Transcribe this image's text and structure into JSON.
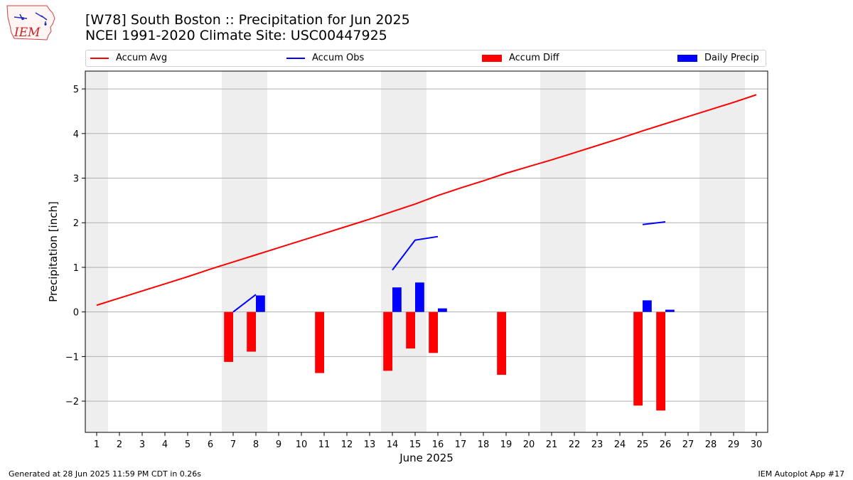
{
  "logo": {
    "text": "IEM"
  },
  "title": {
    "line1": "[W78] South Boston :: Precipitation for Jun 2025",
    "line2": "NCEI 1991-2020 Climate Site: USC00447925"
  },
  "legend": [
    {
      "label": "Accum Avg",
      "kind": "line",
      "color": "#ff0000"
    },
    {
      "label": "Accum Obs",
      "kind": "line",
      "color": "#0000ff"
    },
    {
      "label": "Accum Diff",
      "kind": "bar",
      "color": "#ff0000"
    },
    {
      "label": "Daily Precip",
      "kind": "bar",
      "color": "#0000ff"
    }
  ],
  "footer": {
    "left": "Generated at 28 Jun 2025 11:59 PM CDT in 0.26s",
    "right": "IEM Autoplot App #17"
  },
  "chart_data": {
    "type": "bar",
    "xlabel": "June 2025",
    "ylabel": "Precipitation [inch]",
    "xlim": [
      0.5,
      30.5
    ],
    "ylim": [
      -2.7,
      5.4
    ],
    "yticks": [
      -2,
      -1,
      0,
      1,
      2,
      3,
      4,
      5
    ],
    "ytick_labels": [
      "−2",
      "−1",
      "0",
      "1",
      "2",
      "3",
      "4",
      "5"
    ],
    "days": [
      1,
      2,
      3,
      4,
      5,
      6,
      7,
      8,
      9,
      10,
      11,
      12,
      13,
      14,
      15,
      16,
      17,
      18,
      19,
      20,
      21,
      22,
      23,
      24,
      25,
      26,
      27,
      28,
      29,
      30
    ],
    "weekend_shading": [
      [
        0.5,
        1.5
      ],
      [
        6.5,
        8.5
      ],
      [
        13.5,
        15.5
      ],
      [
        20.5,
        22.5
      ],
      [
        27.5,
        29.5
      ]
    ],
    "grid": "horizontal",
    "colors": {
      "avg": "#ff0000",
      "obs": "#0000ff",
      "diff": "#ff0000",
      "daily": "#0000ff",
      "shade": "#eeeeee",
      "grid": "#b0b0b0"
    },
    "series": [
      {
        "name": "Accum Avg",
        "kind": "line",
        "x": [
          1,
          2,
          3,
          4,
          5,
          6,
          7,
          8,
          9,
          10,
          11,
          12,
          13,
          14,
          15,
          16,
          17,
          18,
          19,
          20,
          21,
          22,
          23,
          24,
          25,
          26,
          27,
          28,
          29,
          30
        ],
        "values": [
          0.15,
          0.31,
          0.47,
          0.63,
          0.79,
          0.96,
          1.12,
          1.28,
          1.44,
          1.6,
          1.76,
          1.92,
          2.08,
          2.25,
          2.42,
          2.61,
          2.78,
          2.94,
          3.11,
          3.26,
          3.41,
          3.57,
          3.73,
          3.89,
          4.06,
          4.22,
          4.38,
          4.54,
          4.7,
          4.87
        ]
      },
      {
        "name": "Accum Obs",
        "kind": "line",
        "segments": [
          {
            "x": [
              7,
              8
            ],
            "values": [
              0.0,
              0.39
            ]
          },
          {
            "x": [
              14,
              15,
              16
            ],
            "values": [
              0.94,
              1.61,
              1.69
            ]
          },
          {
            "x": [
              25,
              26
            ],
            "values": [
              1.96,
              2.02
            ]
          }
        ]
      },
      {
        "name": "Accum Diff",
        "kind": "bar",
        "x": [
          7,
          8,
          11,
          14,
          15,
          16,
          19,
          25,
          26
        ],
        "values": [
          -1.12,
          -0.89,
          -1.37,
          -1.32,
          -0.82,
          -0.92,
          -1.41,
          -2.1,
          -2.21
        ]
      },
      {
        "name": "Daily Precip",
        "kind": "bar",
        "x": [
          8,
          14,
          15,
          16,
          25,
          26
        ],
        "values": [
          0.37,
          0.55,
          0.66,
          0.08,
          0.26,
          0.05
        ]
      }
    ]
  }
}
